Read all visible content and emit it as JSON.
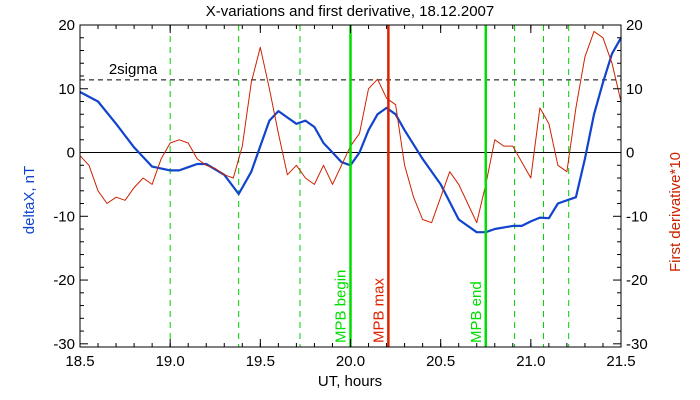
{
  "chart_data": {
    "type": "line",
    "title": "X-variations and first derivative, 18.12.2007",
    "xlabel": "UT, hours",
    "ylabel_left": "deltaX, nT",
    "ylabel_right": "First derivative*10",
    "xlim": [
      18.5,
      21.5
    ],
    "ylim": [
      -30.5,
      20
    ],
    "x_ticks": [
      18.5,
      19.0,
      19.5,
      20.0,
      20.5,
      21.0,
      21.5
    ],
    "x_tick_labels": [
      "18.5",
      "19.0",
      "19.5",
      "20.0",
      "20.5",
      "21.0",
      "21.5"
    ],
    "y_ticks": [
      20,
      10,
      0,
      -10,
      -20,
      -30
    ],
    "y_tick_labels": [
      "20",
      "10",
      "0",
      "-10",
      "-20",
      "-30"
    ],
    "sigma_level": 11.4,
    "sigma_label": "2sigma",
    "zero_line": 0,
    "dashed_markers": [
      19.0,
      19.38,
      19.72,
      20.91,
      21.07,
      21.21
    ],
    "solid_markers": [
      {
        "x": 20.0,
        "label": "MPB begin",
        "color": "#00dd00"
      },
      {
        "x": 20.21,
        "label": "MPB max",
        "color": "#dd2200"
      },
      {
        "x": 20.75,
        "label": "MPB end",
        "color": "#00dd00"
      }
    ],
    "series": [
      {
        "name": "deltaX, nT",
        "color": "#1144cc",
        "x": [
          18.5,
          18.6,
          18.7,
          18.8,
          18.9,
          19.0,
          19.05,
          19.1,
          19.15,
          19.2,
          19.3,
          19.38,
          19.45,
          19.5,
          19.55,
          19.6,
          19.65,
          19.7,
          19.75,
          19.8,
          19.85,
          19.9,
          19.95,
          20.0,
          20.05,
          20.1,
          20.15,
          20.2,
          20.25,
          20.3,
          20.4,
          20.5,
          20.6,
          20.7,
          20.75,
          20.8,
          20.9,
          20.95,
          21.0,
          21.05,
          21.1,
          21.15,
          21.2,
          21.25,
          21.3,
          21.35,
          21.4,
          21.45,
          21.5
        ],
        "values": [
          9.5,
          8,
          4.5,
          0.8,
          -2.2,
          -2.8,
          -2.8,
          -2.3,
          -1.8,
          -1.8,
          -3.5,
          -6.5,
          -3,
          1,
          5,
          6.5,
          5.5,
          4.5,
          5,
          4,
          1.5,
          0,
          -1.5,
          -2,
          0,
          3.5,
          6,
          7,
          6,
          3.5,
          -1,
          -5,
          -10.5,
          -12.5,
          -12.5,
          -12,
          -11.5,
          -11.5,
          -10.8,
          -10.2,
          -10.3,
          -8,
          -7.5,
          -7,
          -1,
          6,
          11,
          15.5,
          18
        ]
      },
      {
        "name": "First derivative*10",
        "color": "#cc2200",
        "x": [
          18.5,
          18.55,
          18.6,
          18.65,
          18.7,
          18.75,
          18.8,
          18.85,
          18.9,
          18.95,
          19.0,
          19.05,
          19.1,
          19.15,
          19.2,
          19.25,
          19.3,
          19.35,
          19.4,
          19.45,
          19.5,
          19.55,
          19.6,
          19.65,
          19.7,
          19.75,
          19.8,
          19.85,
          19.9,
          19.95,
          20.0,
          20.05,
          20.1,
          20.15,
          20.2,
          20.25,
          20.3,
          20.35,
          20.4,
          20.45,
          20.5,
          20.55,
          20.6,
          20.65,
          20.7,
          20.75,
          20.8,
          20.85,
          20.9,
          20.95,
          21.0,
          21.05,
          21.1,
          21.15,
          21.2,
          21.25,
          21.3,
          21.35,
          21.4,
          21.45,
          21.5
        ],
        "values": [
          -0.5,
          -2,
          -6,
          -8,
          -7,
          -7.5,
          -5.5,
          -4,
          -5,
          -1,
          1.5,
          2,
          1.5,
          -1,
          -2,
          -2.5,
          -3.5,
          -4,
          1,
          11,
          16.5,
          10,
          3,
          -3.5,
          -2,
          -4,
          -5,
          -2,
          -5,
          -2,
          1,
          3,
          10,
          11.5,
          8.5,
          7.5,
          -2,
          -7,
          -10.5,
          -11,
          -7,
          -3,
          -5,
          -8,
          -11,
          -5,
          2,
          1,
          1,
          -1.5,
          -4,
          7,
          4.5,
          -2,
          -3,
          7,
          15,
          19,
          18,
          14,
          8
        ]
      }
    ]
  }
}
